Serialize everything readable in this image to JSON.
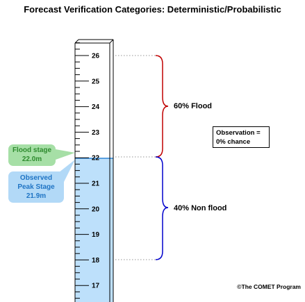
{
  "title": "Forecast Verification Categories: Deterministic/Probabilistic",
  "gauge": {
    "ticks": [
      "26",
      "25",
      "24",
      "23",
      "22",
      "21",
      "20",
      "19",
      "18",
      "17"
    ],
    "water_color": "#bde0fb",
    "water_line_color": "#2f86d6"
  },
  "flood_stage_badge": {
    "label": "Flood stage",
    "value": "22.0m",
    "color": "#a6dfa6"
  },
  "peak_stage_badge": {
    "line1": "Observed",
    "line2": "Peak Stage",
    "value": "21.9m",
    "color": "#b2d9f7"
  },
  "upper_range": {
    "label": "60% Flood",
    "brace_color": "#c00000"
  },
  "lower_range": {
    "label": "40% Non flood",
    "brace_color": "#0000cc"
  },
  "observation_box": {
    "line1": "Observation =",
    "line2": "0% chance"
  },
  "copyright": "©The COMET Program"
}
